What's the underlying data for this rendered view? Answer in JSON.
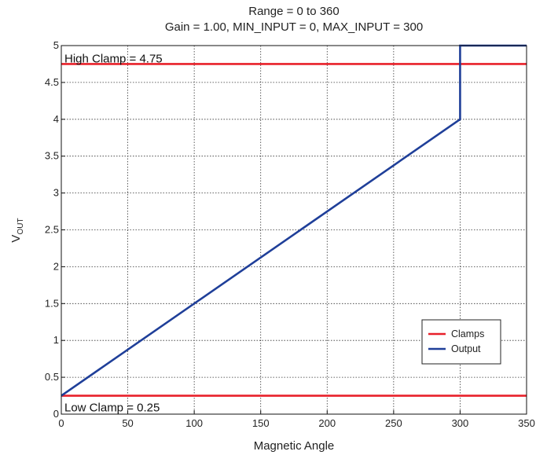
{
  "chart_data": {
    "type": "line",
    "title": "Range = 0 to 360",
    "subtitle": "Gain = 1.00, MIN_INPUT = 0, MAX_INPUT = 300",
    "xlabel": "Magnetic Angle",
    "ylabel": "V",
    "ylabel_sub": "OUT",
    "xlim": [
      0,
      350
    ],
    "ylim": [
      0,
      5
    ],
    "xticks": [
      0,
      50,
      100,
      150,
      200,
      250,
      300,
      350
    ],
    "yticks": [
      0,
      0.5,
      1,
      1.5,
      2,
      2.5,
      3,
      3.5,
      4,
      4.5,
      5
    ],
    "ytick_labels": [
      "0",
      "0.5",
      "1",
      "1.5",
      "2",
      "2.5",
      "3",
      "3.5",
      "4",
      "4.5",
      "5"
    ],
    "grid": true,
    "legend_position": "bottom-right",
    "series": [
      {
        "name": "Clamps",
        "color": "#e8202a",
        "lines": [
          {
            "x": [
              0,
              350
            ],
            "y": [
              4.75,
              4.75
            ]
          },
          {
            "x": [
              0,
              350
            ],
            "y": [
              0.25,
              0.25
            ]
          }
        ]
      },
      {
        "name": "Output",
        "color": "#1f3f99",
        "x": [
          0,
          300,
          300,
          350
        ],
        "y": [
          0.25,
          4.0,
          5.0,
          5.0
        ]
      }
    ],
    "annotations": [
      {
        "text": "High Clamp = 4.75",
        "x": 0,
        "y": 4.75
      },
      {
        "text": "Low Clamp = 0.25",
        "x": 0,
        "y": 0.25
      }
    ]
  }
}
